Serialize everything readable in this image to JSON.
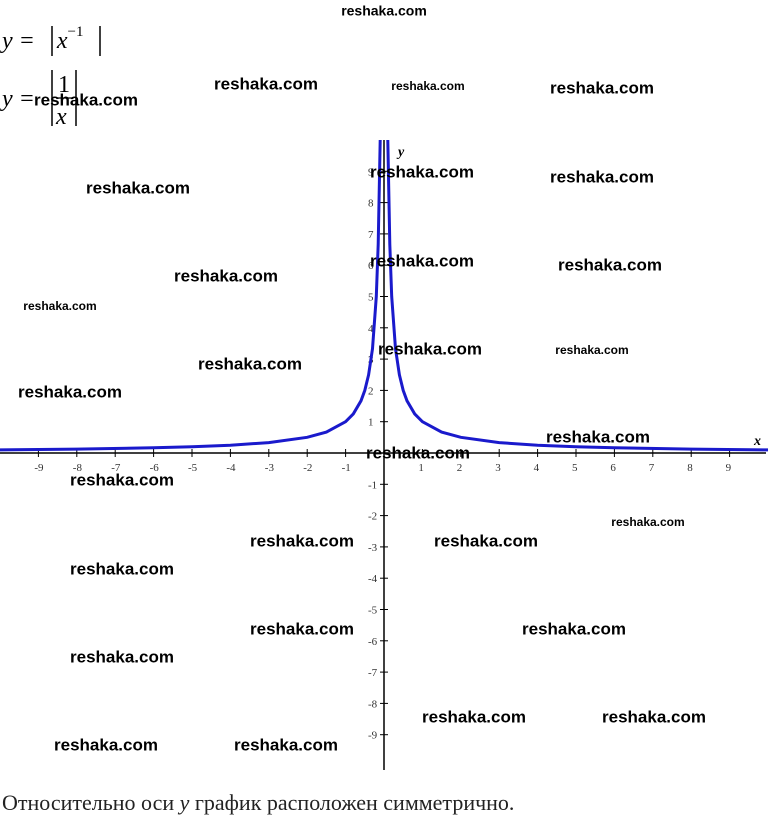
{
  "formulas": [
    {
      "lhs": "y =",
      "base": "x",
      "exp": "−1"
    },
    {
      "lhs": "y =",
      "num": "1",
      "den": "x"
    }
  ],
  "chart_data": {
    "type": "line",
    "xlabel": "x",
    "ylabel": "y",
    "xlim": [
      -10,
      10
    ],
    "ylim": [
      -10,
      10
    ],
    "xticks": [
      -9,
      -8,
      -7,
      -6,
      -5,
      -4,
      -3,
      -2,
      -1,
      1,
      2,
      3,
      4,
      5,
      6,
      7,
      8,
      9
    ],
    "yticks": [
      -9,
      -8,
      -7,
      -6,
      -5,
      -4,
      -3,
      -2,
      -1,
      1,
      2,
      3,
      4,
      5,
      6,
      7,
      8,
      9
    ],
    "x": [
      -10,
      -8,
      -6,
      -5,
      -4,
      -3,
      -2,
      -1.5,
      -1,
      -0.8,
      -0.6,
      -0.5,
      -0.4,
      -0.3,
      -0.2,
      -0.15,
      -0.1,
      0,
      0.1,
      0.15,
      0.2,
      0.3,
      0.4,
      0.5,
      0.6,
      0.8,
      1,
      1.5,
      2,
      3,
      4,
      5,
      6,
      8,
      10
    ],
    "series": [
      {
        "name": "y = |1/x|",
        "color": "#1a1acc",
        "values": [
          0.1,
          0.125,
          0.167,
          0.2,
          0.25,
          0.333,
          0.5,
          0.667,
          1,
          1.25,
          1.667,
          2,
          2.5,
          3.333,
          5,
          6.667,
          10,
          null,
          10,
          6.667,
          5,
          3.333,
          2.5,
          2,
          1.667,
          1.25,
          1,
          0.667,
          0.5,
          0.333,
          0.25,
          0.2,
          0.167,
          0.125,
          0.1
        ]
      }
    ]
  },
  "caption": {
    "before": "Относительно оси ",
    "var": "y",
    "after": " график расположен симметрично."
  },
  "watermarks": [
    "reshaka.com",
    "reshaka.com",
    "reshaka.com",
    "reshaka.com",
    "reshaka.com",
    "reshaka.com",
    "reshaka.com",
    "reshaka.com",
    "reshaka.com",
    "reshaka.com",
    "reshaka.com",
    "reshaka.com",
    "reshaka.com",
    "reshaka.com",
    "reshaka.com",
    "reshaka.com",
    "reshaka.com",
    "reshaka.com",
    "reshaka.com",
    "reshaka.com",
    "reshaka.com",
    "reshaka.com",
    "reshaka.com",
    "reshaka.com",
    "reshaka.com",
    "reshaka.com",
    "reshaka.com",
    "reshaka.com",
    "reshaka.com",
    "reshaka.com"
  ]
}
